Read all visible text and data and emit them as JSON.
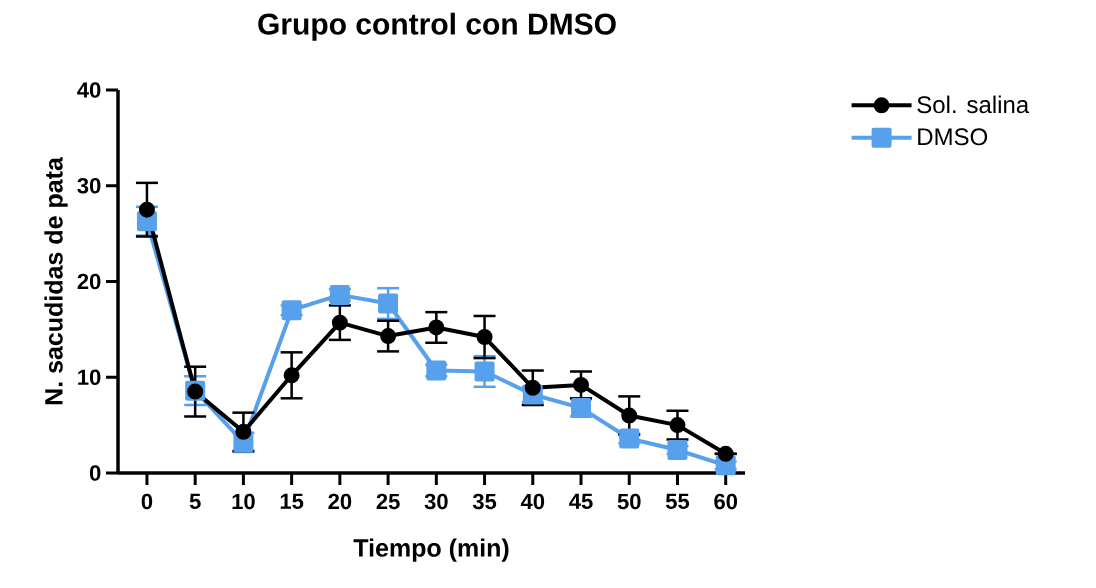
{
  "chart_data": {
    "type": "line",
    "title": "Grupo control con DMSO",
    "xlabel": "Tiempo (min)",
    "ylabel": "N. sacudidas de pata",
    "x": [
      0,
      5,
      10,
      15,
      20,
      25,
      30,
      35,
      40,
      45,
      50,
      55,
      60
    ],
    "series": [
      {
        "name": "Sol. salina",
        "color": "#000000",
        "marker": "circle",
        "values": [
          27.5,
          8.5,
          4.3,
          10.2,
          15.7,
          14.3,
          15.2,
          14.2,
          8.9,
          9.2,
          6.0,
          5.0,
          2.0
        ],
        "errors": [
          2.8,
          2.6,
          2.0,
          2.4,
          1.8,
          1.6,
          1.6,
          2.2,
          1.8,
          1.4,
          2.0,
          1.5,
          null
        ]
      },
      {
        "name": "DMSO",
        "color": "#56a0ec",
        "marker": "square",
        "values": [
          26.3,
          8.6,
          3.2,
          17.0,
          18.6,
          17.7,
          10.7,
          10.6,
          8.2,
          6.8,
          3.6,
          2.4,
          0.8
        ],
        "errors": [
          1.5,
          1.5,
          1.0,
          0.5,
          0.6,
          1.6,
          0.6,
          1.6,
          0.8,
          0.9,
          0.5,
          0.4,
          0.4
        ]
      }
    ],
    "xlim": [
      -3,
      62
    ],
    "ylim": [
      0,
      40
    ],
    "xticks": [
      0,
      5,
      10,
      15,
      20,
      25,
      30,
      35,
      40,
      45,
      50,
      55,
      60
    ],
    "yticks": [
      0,
      10,
      20,
      30,
      40
    ],
    "grid": false,
    "legend": "top right",
    "line_style": "solid"
  }
}
